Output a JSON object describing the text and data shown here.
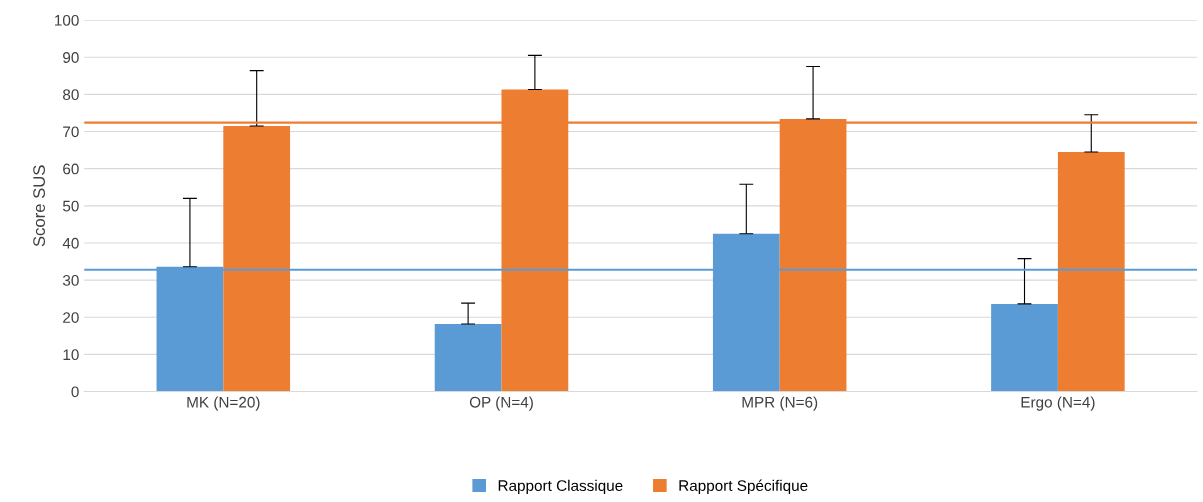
{
  "chart_data": {
    "type": "bar",
    "ylabel": "Score SUS",
    "categories": [
      "MK (N=20)",
      "OP (N=4)",
      "MPR (N=6)",
      "Ergo (N=4)"
    ],
    "series": [
      {
        "name": "Rapport Classique",
        "color": "#5b9bd5",
        "values": [
          33.6,
          18.2,
          42.5,
          23.6
        ],
        "errors": [
          [
            33.6,
            52
          ],
          [
            18.2,
            23.8
          ],
          [
            42.5,
            55.8
          ],
          [
            23.6,
            35.8
          ]
        ]
      },
      {
        "name": "Rapport Spécifique",
        "color": "#ed7d31",
        "values": [
          71.5,
          81.3,
          73.4,
          64.5
        ],
        "errors": [
          [
            71.5,
            86.4
          ],
          [
            81.3,
            90.5
          ],
          [
            73.4,
            87.5
          ],
          [
            64.5,
            74.5
          ]
        ]
      }
    ],
    "ref_lines": [
      {
        "axis": "y",
        "value": 72.4,
        "color": "#ed7d31"
      },
      {
        "axis": "y",
        "value": 32.8,
        "color": "#5b9bd5"
      }
    ],
    "ylim": [
      0,
      100
    ],
    "yticks": [
      0,
      10,
      20,
      30,
      40,
      50,
      60,
      70,
      80,
      90,
      100
    ],
    "grid": "y",
    "legend": "bottom"
  }
}
